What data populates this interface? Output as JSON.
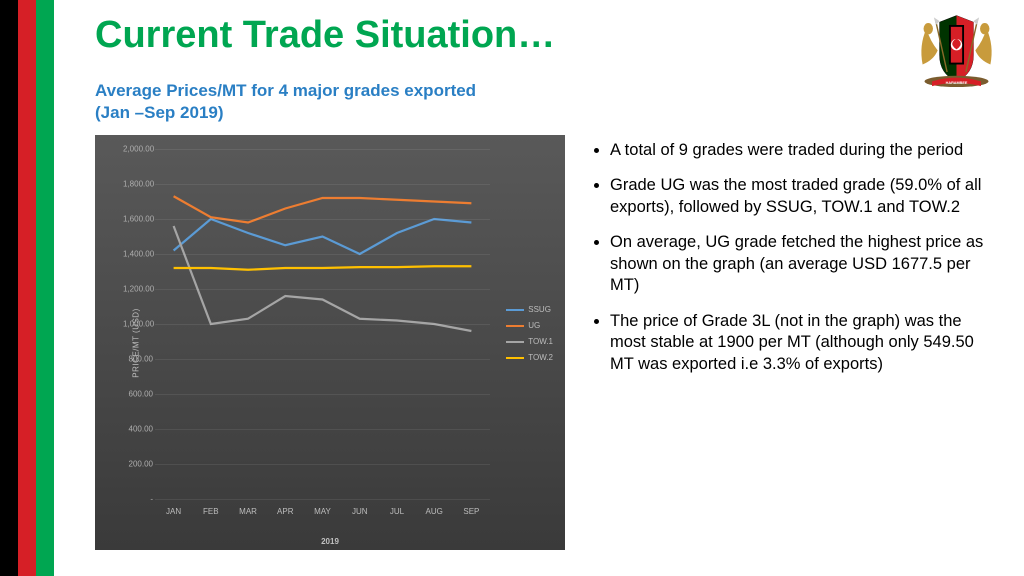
{
  "title": "Current Trade Situation…",
  "subtitle_line1": "Average Prices/MT for 4 major grades exported",
  "subtitle_line2": "(Jan –Sep 2019)",
  "bullets": [
    "A total of 9 grades were traded during the period",
    "Grade UG was the most traded grade (59.0% of all exports), followed by SSUG, TOW.1 and TOW.2",
    "On average, UG grade fetched the highest price as shown on the graph (an average USD 1677.5 per MT)",
    "The price of Grade 3L (not in the graph) was the most stable at 1900 per MT (although only 549.50 MT was exported i.e 3.3% of exports)"
  ],
  "chart": {
    "type": "line",
    "background_top": "#595959",
    "background_bottom": "#3a3a3a",
    "grid_color": "rgba(255,255,255,0.08)",
    "y_axis_label": "PRICE/MT (USD)",
    "x_axis_label": "2019",
    "ylim": [
      0,
      2000
    ],
    "ytick_step": 200,
    "ytick_labels": [
      "-",
      "200.00",
      "400.00",
      "600.00",
      "800.00",
      "1,000.00",
      "1,200.00",
      "1,400.00",
      "1,600.00",
      "1,800.00",
      "2,000.00"
    ],
    "categories": [
      "JAN",
      "FEB",
      "MAR",
      "APR",
      "MAY",
      "JUN",
      "JUL",
      "AUG",
      "SEP"
    ],
    "series": [
      {
        "name": "SSUG",
        "color": "#5b9bd5",
        "values": [
          1420,
          1600,
          1520,
          1450,
          1500,
          1400,
          1520,
          1600,
          1580
        ]
      },
      {
        "name": "UG",
        "color": "#ed7d31",
        "values": [
          1730,
          1610,
          1580,
          1660,
          1720,
          1720,
          1710,
          1700,
          1690
        ]
      },
      {
        "name": "TOW.1",
        "color": "#a5a5a5",
        "values": [
          1560,
          1000,
          1030,
          1160,
          1140,
          1030,
          1020,
          1000,
          960
        ]
      },
      {
        "name": "TOW.2",
        "color": "#ffc000",
        "values": [
          1320,
          1320,
          1310,
          1320,
          1320,
          1325,
          1325,
          1330,
          1330
        ]
      }
    ],
    "tick_color": "#bdbdbd",
    "tick_fontsize": 8
  },
  "flag_colors": {
    "black": "#000000",
    "red": "#d61f26",
    "green": "#00a651"
  }
}
